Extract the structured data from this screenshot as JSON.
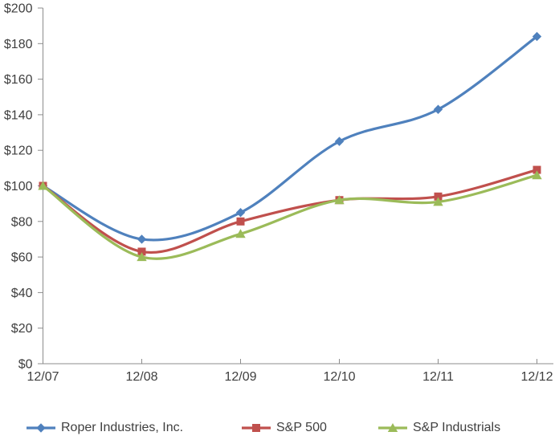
{
  "chart_data": {
    "type": "line",
    "title": "",
    "xlabel": "",
    "ylabel": "",
    "categories": [
      "12/07",
      "12/08",
      "12/09",
      "12/10",
      "12/11",
      "12/12"
    ],
    "series": [
      {
        "name": "Roper Industries, Inc.",
        "color": "#4F81BD",
        "marker": "diamond",
        "values": [
          100,
          70,
          85,
          125,
          143,
          184
        ]
      },
      {
        "name": "S&P 500",
        "color": "#C0504D",
        "marker": "square",
        "values": [
          100,
          63,
          80,
          92,
          94,
          109
        ]
      },
      {
        "name": "S&P Industrials",
        "color": "#9BBB59",
        "marker": "triangle",
        "values": [
          100,
          60,
          73,
          92,
          91,
          106
        ]
      }
    ],
    "y_ticks": [
      0,
      20,
      40,
      60,
      80,
      100,
      120,
      140,
      160,
      180,
      200
    ],
    "y_tick_labels": [
      "$0",
      "$20",
      "$40",
      "$60",
      "$80",
      "$100",
      "$120",
      "$140",
      "$160",
      "$180",
      "$200"
    ],
    "ylim": [
      0,
      200
    ],
    "grid": false,
    "smoothed": true,
    "legend_position": "bottom",
    "axis_color": "#8C8C8C",
    "text_color": "#3F3F3F"
  }
}
